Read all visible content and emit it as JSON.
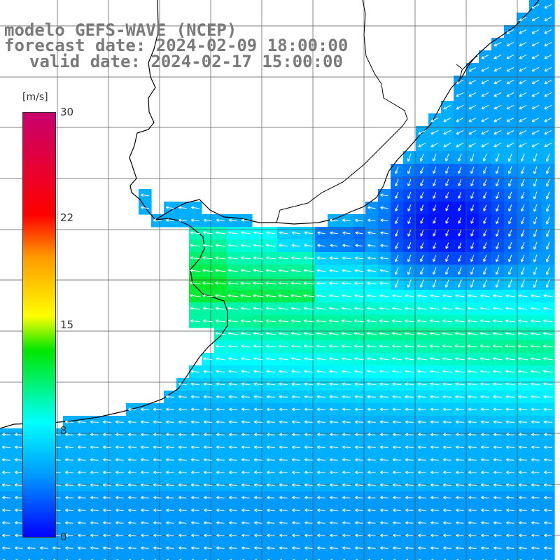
{
  "title": {
    "model": "modelo GEFS-WAVE (NCEP)",
    "forecast": "forecast date: 2024-02-09 18:00:00",
    "valid": "valid date: 2024-02-17 15:00:00"
  },
  "colorbar": {
    "units": "[m/s]",
    "ticks": [
      "30",
      "22",
      "15",
      "8",
      "0"
    ],
    "tick_values": [
      30,
      22,
      15,
      8,
      0
    ],
    "min": 0,
    "max": 30
  },
  "colors": {
    "land": "#ffffff",
    "coast": "#000000",
    "grid": "#555555",
    "arrow": "#ffffff",
    "title": "#7a7a7a"
  },
  "wind_field": {
    "description_units": "m/s",
    "predominant_direction": "toward west-southwest",
    "regions": [
      {
        "name": "open ocean south",
        "speed": 5
      },
      {
        "name": "central band",
        "speed": 10
      },
      {
        "name": "north-east low",
        "speed": 2
      }
    ]
  }
}
